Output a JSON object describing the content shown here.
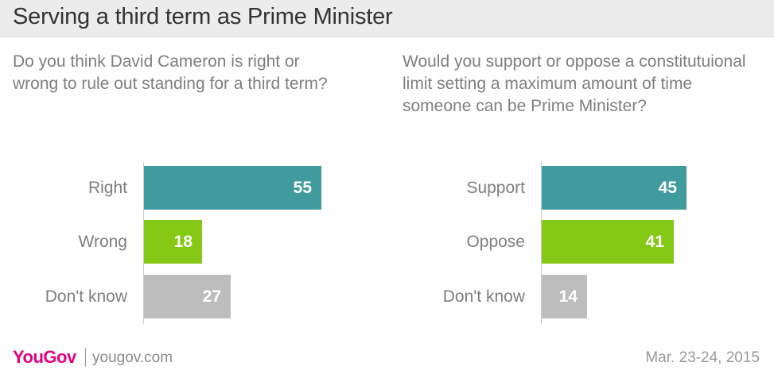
{
  "title": "Serving a third term as Prime Minister",
  "chart_data": [
    {
      "type": "bar",
      "orientation": "horizontal",
      "title": "Do you think David Cameron is right or wrong to rule out standing for a third term?",
      "categories": [
        "Right",
        "Wrong",
        "Don't know"
      ],
      "values": [
        55,
        18,
        27
      ],
      "colors": [
        "#3f9b9d",
        "#86c816",
        "#bdbdbd"
      ],
      "xlim": [
        0,
        100
      ]
    },
    {
      "type": "bar",
      "orientation": "horizontal",
      "title": "Would you support or oppose a constitutuional limit setting a maximum amount of time someone can be Prime Minister?",
      "categories": [
        "Support",
        "Oppose",
        "Don't know"
      ],
      "values": [
        45,
        41,
        14
      ],
      "colors": [
        "#3f9b9d",
        "#86c816",
        "#bdbdbd"
      ],
      "xlim": [
        0,
        100
      ]
    }
  ],
  "footer": {
    "brand": "YouGov",
    "site": "yougov.com",
    "date": "Mar. 23-24, 2015"
  }
}
